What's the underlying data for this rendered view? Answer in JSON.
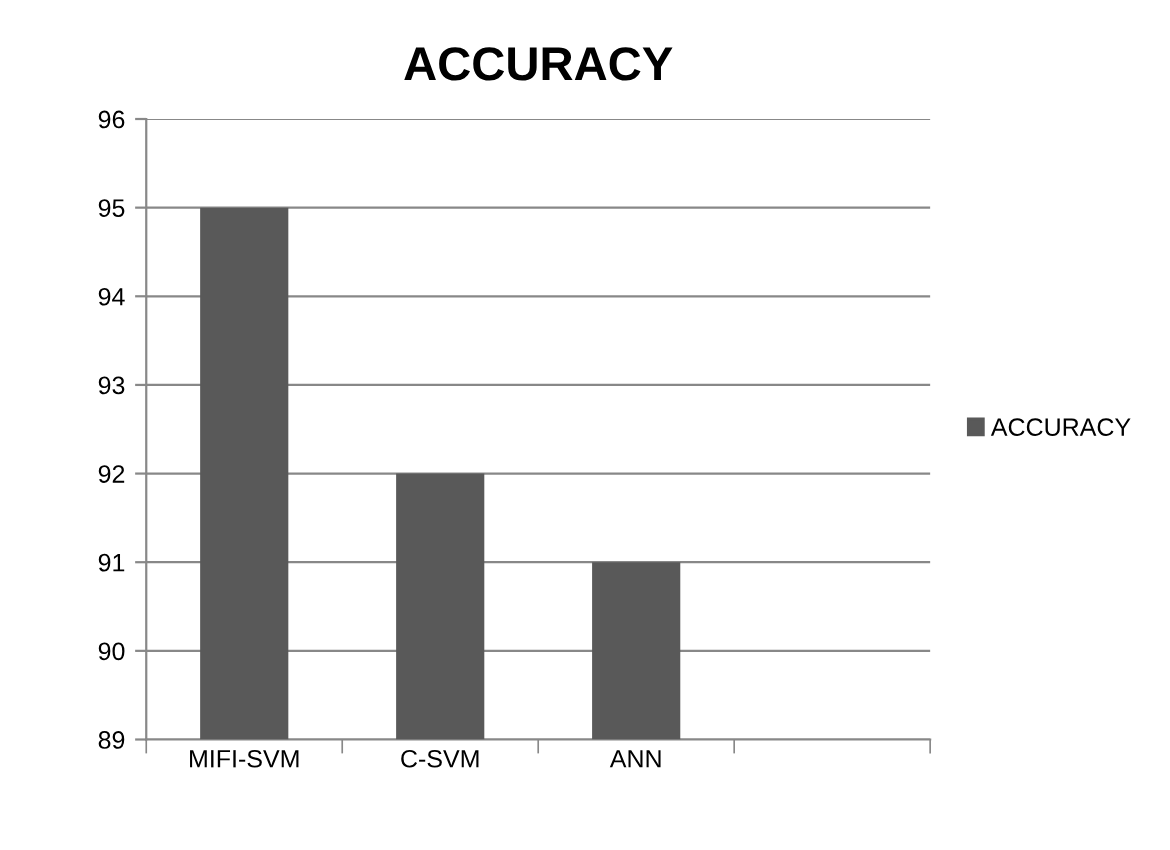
{
  "chart_data": {
    "type": "bar",
    "title": "ACCURACY",
    "categories": [
      "MIFI-SVM",
      "C-SVM",
      "ANN",
      null
    ],
    "series": [
      {
        "name": "ACCURACY",
        "color": "#595959",
        "values": [
          95,
          92,
          91,
          null
        ]
      }
    ],
    "ylim": [
      89,
      96
    ],
    "yticks": [
      89,
      90,
      91,
      92,
      93,
      94,
      95,
      96
    ],
    "grid": "y",
    "legend": "right"
  }
}
